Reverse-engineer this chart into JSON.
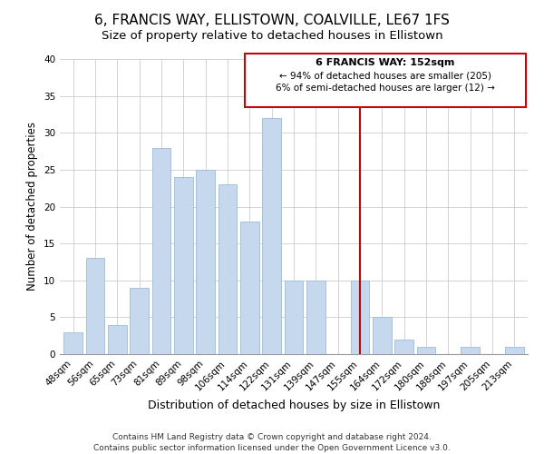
{
  "title": "6, FRANCIS WAY, ELLISTOWN, COALVILLE, LE67 1FS",
  "subtitle": "Size of property relative to detached houses in Ellistown",
  "xlabel": "Distribution of detached houses by size in Ellistown",
  "ylabel": "Number of detached properties",
  "bar_labels": [
    "48sqm",
    "56sqm",
    "65sqm",
    "73sqm",
    "81sqm",
    "89sqm",
    "98sqm",
    "106sqm",
    "114sqm",
    "122sqm",
    "131sqm",
    "139sqm",
    "147sqm",
    "155sqm",
    "164sqm",
    "172sqm",
    "180sqm",
    "188sqm",
    "197sqm",
    "205sqm",
    "213sqm"
  ],
  "bar_values": [
    3,
    13,
    4,
    9,
    28,
    24,
    25,
    23,
    18,
    32,
    10,
    10,
    0,
    10,
    5,
    2,
    1,
    0,
    1,
    0,
    1
  ],
  "bar_color": "#c5d8ed",
  "bar_edge_color": "#a0bcd8",
  "vline_x_index": 13,
  "vline_color": "#cc0000",
  "annotation_title": "6 FRANCIS WAY: 152sqm",
  "annotation_line1": "← 94% of detached houses are smaller (205)",
  "annotation_line2": "6% of semi-detached houses are larger (12) →",
  "annotation_box_color": "#ffffff",
  "annotation_box_edge": "#cc0000",
  "ylim": [
    0,
    40
  ],
  "yticks": [
    0,
    5,
    10,
    15,
    20,
    25,
    30,
    35,
    40
  ],
  "footer": "Contains HM Land Registry data © Crown copyright and database right 2024.\nContains public sector information licensed under the Open Government Licence v3.0.",
  "title_fontsize": 11,
  "subtitle_fontsize": 9.5,
  "xlabel_fontsize": 9,
  "ylabel_fontsize": 8.5,
  "tick_fontsize": 7.5,
  "footer_fontsize": 6.5,
  "ann_title_fontsize": 8,
  "ann_text_fontsize": 7.5
}
